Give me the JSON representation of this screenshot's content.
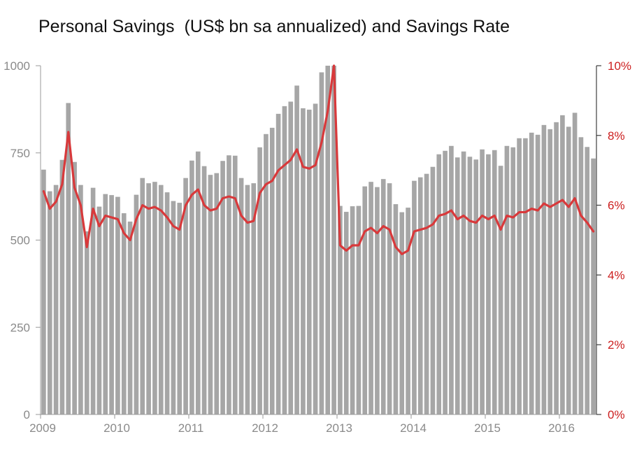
{
  "chart_data": {
    "type": "bar",
    "title": "Personal Savings  (US$ bn sa annualized) and Savings Rate",
    "xlabel": "",
    "ylabel": "",
    "x_start": "2009-01",
    "x_tick_labels": [
      "2009",
      "2010",
      "2011",
      "2012",
      "2013",
      "2014",
      "2015",
      "2016"
    ],
    "ylim_left": [
      0,
      1000
    ],
    "yticks_left": [
      "0",
      "250",
      "500",
      "750",
      "1000"
    ],
    "ylim_right": [
      0,
      10
    ],
    "yticks_right": [
      "0%",
      "2%",
      "4%",
      "6%",
      "8%",
      "10%"
    ],
    "grid": false,
    "colors": {
      "bars": "#a6a6a6",
      "line": "#d8393b",
      "right_axis": "#cc1f1f",
      "left_axis": "#8a8a8a"
    },
    "series": [
      {
        "type": "bar",
        "axis": "left",
        "values": [
          702,
          640,
          658,
          730,
          893,
          724,
          658,
          525,
          650,
          596,
          632,
          629,
          624,
          577,
          553,
          630,
          678,
          663,
          667,
          658,
          637,
          612,
          607,
          678,
          728,
          754,
          712,
          687,
          692,
          727,
          743,
          742,
          678,
          658,
          663,
          766,
          804,
          822,
          862,
          884,
          897,
          943,
          878,
          874,
          891,
          981,
          1000,
          1000,
          598,
          581,
          597,
          598,
          654,
          667,
          652,
          675,
          663,
          603,
          580,
          593,
          670,
          680,
          690,
          710,
          746,
          756,
          770,
          737,
          754,
          739,
          731,
          760,
          746,
          758,
          713,
          770,
          766,
          792,
          792,
          808,
          802,
          830,
          818,
          838,
          858,
          825,
          865,
          795,
          767,
          734
        ]
      },
      {
        "type": "line",
        "axis": "right",
        "values": [
          6.4,
          5.9,
          6.1,
          6.6,
          8.1,
          6.5,
          6.0,
          4.8,
          5.9,
          5.4,
          5.7,
          5.65,
          5.6,
          5.2,
          5.0,
          5.6,
          6.0,
          5.9,
          5.95,
          5.85,
          5.65,
          5.4,
          5.3,
          6.0,
          6.3,
          6.45,
          6.0,
          5.85,
          5.9,
          6.2,
          6.25,
          6.2,
          5.7,
          5.5,
          5.55,
          6.35,
          6.6,
          6.7,
          7.0,
          7.15,
          7.3,
          7.6,
          7.1,
          7.05,
          7.15,
          7.8,
          8.7,
          10.0,
          4.85,
          4.7,
          4.85,
          4.85,
          5.25,
          5.35,
          5.2,
          5.4,
          5.3,
          4.8,
          4.6,
          4.7,
          5.25,
          5.3,
          5.35,
          5.45,
          5.7,
          5.75,
          5.85,
          5.6,
          5.7,
          5.55,
          5.5,
          5.7,
          5.6,
          5.7,
          5.3,
          5.7,
          5.65,
          5.8,
          5.8,
          5.9,
          5.85,
          6.05,
          5.95,
          6.05,
          6.15,
          5.95,
          6.2,
          5.7,
          5.5,
          5.25
        ]
      }
    ]
  }
}
